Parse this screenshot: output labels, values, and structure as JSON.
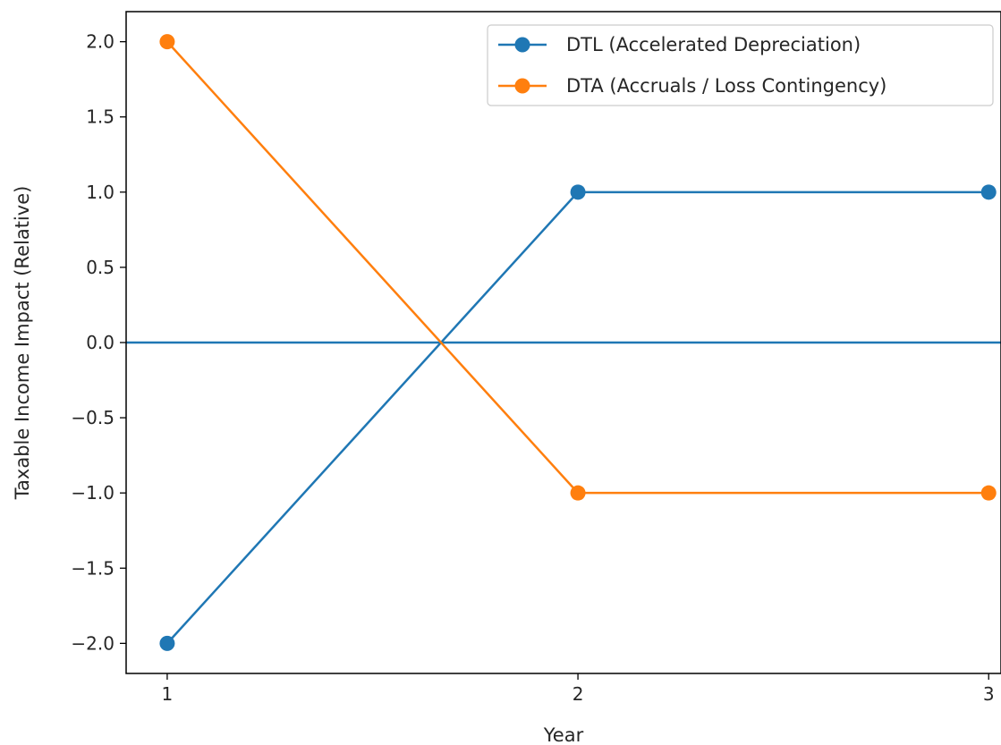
{
  "chart_data": {
    "type": "line",
    "title": "",
    "xlabel": "Year",
    "ylabel": "Taxable Income Impact (Relative)",
    "x": [
      1,
      2,
      3
    ],
    "x_ticks": [
      1,
      2,
      3
    ],
    "x_tick_labels": [
      "1",
      "2",
      "3"
    ],
    "y_ticks": [
      -2.0,
      -1.5,
      -1.0,
      -0.5,
      0.0,
      0.5,
      1.0,
      1.5,
      2.0
    ],
    "y_tick_labels": [
      "−2.0",
      "−1.5",
      "−1.0",
      "−0.5",
      "0.0",
      "0.5",
      "1.0",
      "1.5",
      "2.0"
    ],
    "xlim": [
      0.9,
      3.03
    ],
    "ylim": [
      -2.2,
      2.2
    ],
    "grid": false,
    "legend_position": "top-right",
    "reference_line": {
      "y": 0,
      "color": "#1f77b4"
    },
    "series": [
      {
        "name": "DTL (Accelerated Depreciation)",
        "color": "#1f77b4",
        "values": [
          -2,
          1,
          1
        ]
      },
      {
        "name": "DTA (Accruals / Loss Contingency)",
        "color": "#ff7f0e",
        "values": [
          2,
          -1,
          -1
        ]
      }
    ]
  }
}
